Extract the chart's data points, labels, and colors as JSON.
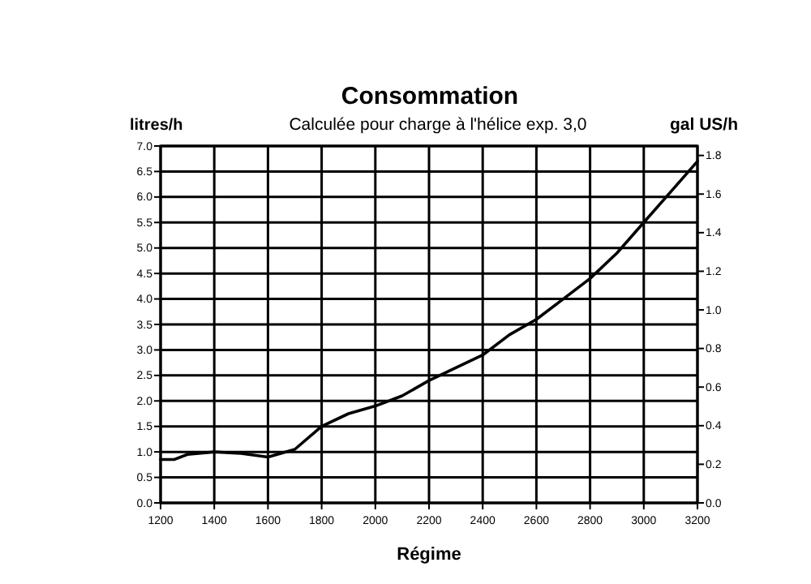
{
  "chart_data": {
    "type": "line",
    "title": "Consommation",
    "subtitle": "Calculée pour charge à l'hélice exp. 3,0",
    "xlabel": "Régime",
    "ylabel": "litres/h",
    "y2label": "gal US/h",
    "x": [
      1200,
      1250,
      1300,
      1400,
      1500,
      1600,
      1700,
      1800,
      1900,
      2000,
      2100,
      2200,
      2300,
      2400,
      2500,
      2600,
      2700,
      2800,
      2900,
      3000,
      3100,
      3200
    ],
    "series": [
      {
        "color": "#000000",
        "values": [
          0.85,
          0.85,
          0.95,
          1.0,
          0.97,
          0.9,
          1.05,
          1.5,
          1.75,
          1.9,
          2.1,
          2.4,
          2.65,
          2.9,
          3.3,
          3.6,
          4.0,
          4.4,
          4.9,
          5.5,
          6.1,
          6.7
        ]
      }
    ],
    "xlim": [
      1200,
      3200
    ],
    "xticks": [
      1200,
      1400,
      1600,
      1800,
      2000,
      2200,
      2400,
      2600,
      2800,
      3000,
      3200
    ],
    "ylim": [
      0,
      7
    ],
    "yticks": [
      {
        "value": 0,
        "label": "0.0"
      },
      0.5,
      {
        "value": 1,
        "label": "1.0"
      },
      1.5,
      {
        "value": 2,
        "label": "2.0"
      },
      2.5,
      {
        "value": 3,
        "label": "3.0"
      },
      3.5,
      {
        "value": 4,
        "label": "4.0"
      },
      4.5,
      {
        "value": 5,
        "label": "5.0"
      },
      5.5,
      {
        "value": 6,
        "label": "6.0"
      },
      6.5,
      {
        "value": 7,
        "label": "7.0"
      }
    ],
    "y2lim": [
      0,
      1.849
    ],
    "y2ticks": [
      {
        "value": 0,
        "label": "0.0"
      },
      0.2,
      0.4,
      0.6,
      0.8,
      {
        "value": 1,
        "label": "1.0"
      },
      1.2,
      1.4,
      1.6,
      1.8
    ],
    "grid": true,
    "line_style": "solid",
    "marker": "none"
  }
}
